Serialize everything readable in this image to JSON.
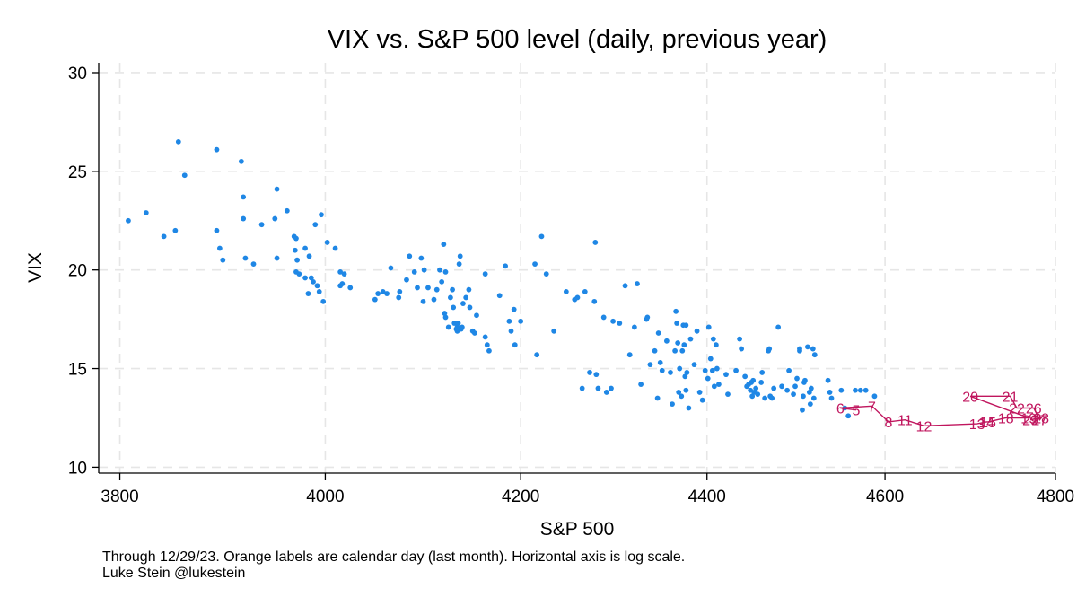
{
  "chart_data": {
    "type": "scatter",
    "title": "VIX vs. S&P 500 level (daily, previous year)",
    "xlabel": "S&P 500",
    "ylabel": "VIX",
    "xscale": "log",
    "xlim": [
      3780,
      4800
    ],
    "ylim": [
      9.7,
      30.5
    ],
    "xticks": [
      3800,
      4000,
      4200,
      4400,
      4600,
      4800
    ],
    "yticks": [
      10,
      15,
      20,
      25,
      30
    ],
    "grid": true,
    "notes": [
      "Through 12/29/23. Orange labels are calendar day (last month). Horizontal axis is log scale.",
      "Luke Stein @lukestein"
    ],
    "colors": {
      "points": "#1f87e5",
      "day_labels": "#c0165e",
      "line": "#c0165e"
    },
    "points": [
      [
        3808,
        22.5
      ],
      [
        3825,
        22.9
      ],
      [
        3842,
        21.7
      ],
      [
        3853,
        22.0
      ],
      [
        3856,
        26.5
      ],
      [
        3862,
        24.8
      ],
      [
        3893,
        22.0
      ],
      [
        3893,
        26.1
      ],
      [
        3896,
        21.1
      ],
      [
        3899,
        20.5
      ],
      [
        3917,
        25.5
      ],
      [
        3919,
        23.7
      ],
      [
        3919,
        22.6
      ],
      [
        3921,
        20.6
      ],
      [
        3929,
        20.3
      ],
      [
        3937,
        22.3
      ],
      [
        3950,
        22.6
      ],
      [
        3952,
        24.1
      ],
      [
        3952,
        20.6
      ],
      [
        3962,
        23.0
      ],
      [
        3969,
        21.7
      ],
      [
        3970,
        21.0
      ],
      [
        3971,
        21.6
      ],
      [
        3971,
        19.9
      ],
      [
        3972,
        20.5
      ],
      [
        3974,
        19.8
      ],
      [
        3980,
        21.1
      ],
      [
        3980,
        19.6
      ],
      [
        3983,
        18.8
      ],
      [
        3984,
        20.7
      ],
      [
        3986,
        19.6
      ],
      [
        3988,
        19.4
      ],
      [
        3990,
        22.3
      ],
      [
        3992,
        19.2
      ],
      [
        3994,
        18.9
      ],
      [
        3996,
        22.8
      ],
      [
        3998,
        18.4
      ],
      [
        4002,
        21.4
      ],
      [
        4010,
        21.1
      ],
      [
        4015,
        19.9
      ],
      [
        4015,
        19.2
      ],
      [
        4017,
        19.3
      ],
      [
        4019,
        19.8
      ],
      [
        4025,
        19.1
      ],
      [
        4050,
        18.5
      ],
      [
        4053,
        18.8
      ],
      [
        4058,
        18.9
      ],
      [
        4062,
        18.8
      ],
      [
        4066,
        20.1
      ],
      [
        4074,
        18.6
      ],
      [
        4075,
        18.9
      ],
      [
        4082,
        19.5
      ],
      [
        4085,
        20.7
      ],
      [
        4090,
        19.9
      ],
      [
        4093,
        19.1
      ],
      [
        4097,
        20.6
      ],
      [
        4099,
        18.4
      ],
      [
        4100,
        20.0
      ],
      [
        4104,
        19.1
      ],
      [
        4110,
        18.5
      ],
      [
        4113,
        19.0
      ],
      [
        4116,
        20.0
      ],
      [
        4118,
        19.4
      ],
      [
        4120,
        21.3
      ],
      [
        4121,
        17.8
      ],
      [
        4122,
        17.6
      ],
      [
        4122,
        19.9
      ],
      [
        4125,
        17.1
      ],
      [
        4127,
        18.6
      ],
      [
        4129,
        19.0
      ],
      [
        4130,
        18.1
      ],
      [
        4131,
        17.3
      ],
      [
        4133,
        17.0
      ],
      [
        4134,
        17.1
      ],
      [
        4134,
        16.9
      ],
      [
        4135,
        17.3
      ],
      [
        4136,
        20.3
      ],
      [
        4137,
        20.7
      ],
      [
        4138,
        17.0
      ],
      [
        4139,
        17.1
      ],
      [
        4140,
        18.3
      ],
      [
        4143,
        18.6
      ],
      [
        4146,
        19.0
      ],
      [
        4147,
        18.1
      ],
      [
        4150,
        16.9
      ],
      [
        4152,
        16.8
      ],
      [
        4154,
        17.7
      ],
      [
        4163,
        16.6
      ],
      [
        4163,
        19.8
      ],
      [
        4165,
        16.2
      ],
      [
        4167,
        15.9
      ],
      [
        4178,
        18.7
      ],
      [
        4184,
        20.2
      ],
      [
        4188,
        17.4
      ],
      [
        4190,
        16.9
      ],
      [
        4193,
        18.0
      ],
      [
        4194,
        16.2
      ],
      [
        4200,
        17.4
      ],
      [
        4215,
        20.3
      ],
      [
        4217,
        15.7
      ],
      [
        4222,
        21.7
      ],
      [
        4227,
        19.8
      ],
      [
        4235,
        16.9
      ],
      [
        4248,
        18.9
      ],
      [
        4257,
        18.5
      ],
      [
        4260,
        18.6
      ],
      [
        4265,
        14.0
      ],
      [
        4268,
        18.9
      ],
      [
        4273,
        14.8
      ],
      [
        4278,
        18.4
      ],
      [
        4279,
        21.4
      ],
      [
        4280,
        14.7
      ],
      [
        4282,
        14.0
      ],
      [
        4288,
        17.6
      ],
      [
        4291,
        13.8
      ],
      [
        4296,
        14.0
      ],
      [
        4298,
        17.4
      ],
      [
        4305,
        17.3
      ],
      [
        4311,
        19.2
      ],
      [
        4316,
        15.7
      ],
      [
        4321,
        17.1
      ],
      [
        4324,
        19.3
      ],
      [
        4328,
        14.2
      ],
      [
        4334,
        17.5
      ],
      [
        4335,
        17.6
      ],
      [
        4338,
        15.2
      ],
      [
        4343,
        15.9
      ],
      [
        4346,
        13.5
      ],
      [
        4347,
        16.8
      ],
      [
        4349,
        15.3
      ],
      [
        4351,
        14.9
      ],
      [
        4356,
        16.4
      ],
      [
        4360,
        14.8
      ],
      [
        4362,
        13.2
      ],
      [
        4365,
        15.9
      ],
      [
        4366,
        17.9
      ],
      [
        4367,
        17.3
      ],
      [
        4368,
        16.3
      ],
      [
        4369,
        13.8
      ],
      [
        4370,
        15.0
      ],
      [
        4372,
        13.6
      ],
      [
        4373,
        15.9
      ],
      [
        4374,
        17.2
      ],
      [
        4375,
        16.2
      ],
      [
        4376,
        14.6
      ],
      [
        4377,
        13.9
      ],
      [
        4377,
        17.2
      ],
      [
        4378,
        14.8
      ],
      [
        4380,
        13.0
      ],
      [
        4382,
        16.5
      ],
      [
        4386,
        15.2
      ],
      [
        4389,
        16.9
      ],
      [
        4392,
        13.8
      ],
      [
        4395,
        13.4
      ],
      [
        4398,
        14.9
      ],
      [
        4401,
        14.5
      ],
      [
        4402,
        17.1
      ],
      [
        4404,
        15.5
      ],
      [
        4406,
        14.9
      ],
      [
        4407,
        16.5
      ],
      [
        4408,
        14.1
      ],
      [
        4410,
        16.2
      ],
      [
        4411,
        15.0
      ],
      [
        4413,
        14.2
      ],
      [
        4421,
        14.7
      ],
      [
        4423,
        13.7
      ],
      [
        4432,
        14.9
      ],
      [
        4436,
        16.5
      ],
      [
        4438,
        16.0
      ],
      [
        4442,
        14.6
      ],
      [
        4444,
        14.1
      ],
      [
        4446,
        14.2
      ],
      [
        4448,
        13.9
      ],
      [
        4449,
        14.3
      ],
      [
        4450,
        13.6
      ],
      [
        4451,
        14.4
      ],
      [
        4452,
        13.8
      ],
      [
        4454,
        14.0
      ],
      [
        4456,
        13.7
      ],
      [
        4460,
        14.3
      ],
      [
        4461,
        14.8
      ],
      [
        4464,
        13.5
      ],
      [
        4468,
        15.9
      ],
      [
        4469,
        16.0
      ],
      [
        4470,
        13.6
      ],
      [
        4472,
        13.5
      ],
      [
        4474,
        14.0
      ],
      [
        4479,
        17.1
      ],
      [
        4483,
        14.1
      ],
      [
        4489,
        13.9
      ],
      [
        4491,
        14.9
      ],
      [
        4496,
        13.7
      ],
      [
        4498,
        14.1
      ],
      [
        4500,
        14.5
      ],
      [
        4503,
        15.9
      ],
      [
        4503,
        16.0
      ],
      [
        4506,
        12.9
      ],
      [
        4507,
        13.6
      ],
      [
        4508,
        14.3
      ],
      [
        4509,
        14.4
      ],
      [
        4512,
        16.1
      ],
      [
        4514,
        13.8
      ],
      [
        4515,
        13.2
      ],
      [
        4516,
        14.0
      ],
      [
        4518,
        16.0
      ],
      [
        4519,
        13.5
      ],
      [
        4520,
        15.7
      ],
      [
        4535,
        14.4
      ],
      [
        4537,
        13.8
      ],
      [
        4539,
        13.5
      ],
      [
        4550,
        13.9
      ],
      [
        4554,
        13.0
      ],
      [
        4558,
        12.6
      ],
      [
        4566,
        13.9
      ],
      [
        4572,
        13.9
      ],
      [
        4578,
        13.9
      ],
      [
        4588,
        13.6
      ]
    ],
    "labeled_points": [
      {
        "label": "5",
        "x": 4567,
        "y": 12.9
      },
      {
        "label": "6",
        "x": 4549,
        "y": 13.0
      },
      {
        "label": "7",
        "x": 4585,
        "y": 13.1
      },
      {
        "label": "8",
        "x": 4604,
        "y": 12.3
      },
      {
        "label": "11",
        "x": 4623,
        "y": 12.4
      },
      {
        "label": "12",
        "x": 4645,
        "y": 12.1
      },
      {
        "label": "13",
        "x": 4707,
        "y": 12.2
      },
      {
        "label": "14",
        "x": 4718,
        "y": 12.3
      },
      {
        "label": "15",
        "x": 4720,
        "y": 12.3
      },
      {
        "label": "18",
        "x": 4741,
        "y": 12.5
      },
      {
        "label": "19",
        "x": 4768,
        "y": 12.5
      },
      {
        "label": "20",
        "x": 4699,
        "y": 13.6
      },
      {
        "label": "21",
        "x": 4746,
        "y": 13.6
      },
      {
        "label": "22",
        "x": 4754,
        "y": 13.0
      },
      {
        "label": "26",
        "x": 4774,
        "y": 13.0
      },
      {
        "label": "27",
        "x": 4781,
        "y": 12.4
      },
      {
        "label": "28",
        "x": 4783,
        "y": 12.5
      },
      {
        "label": "29",
        "x": 4770,
        "y": 12.4
      }
    ]
  }
}
